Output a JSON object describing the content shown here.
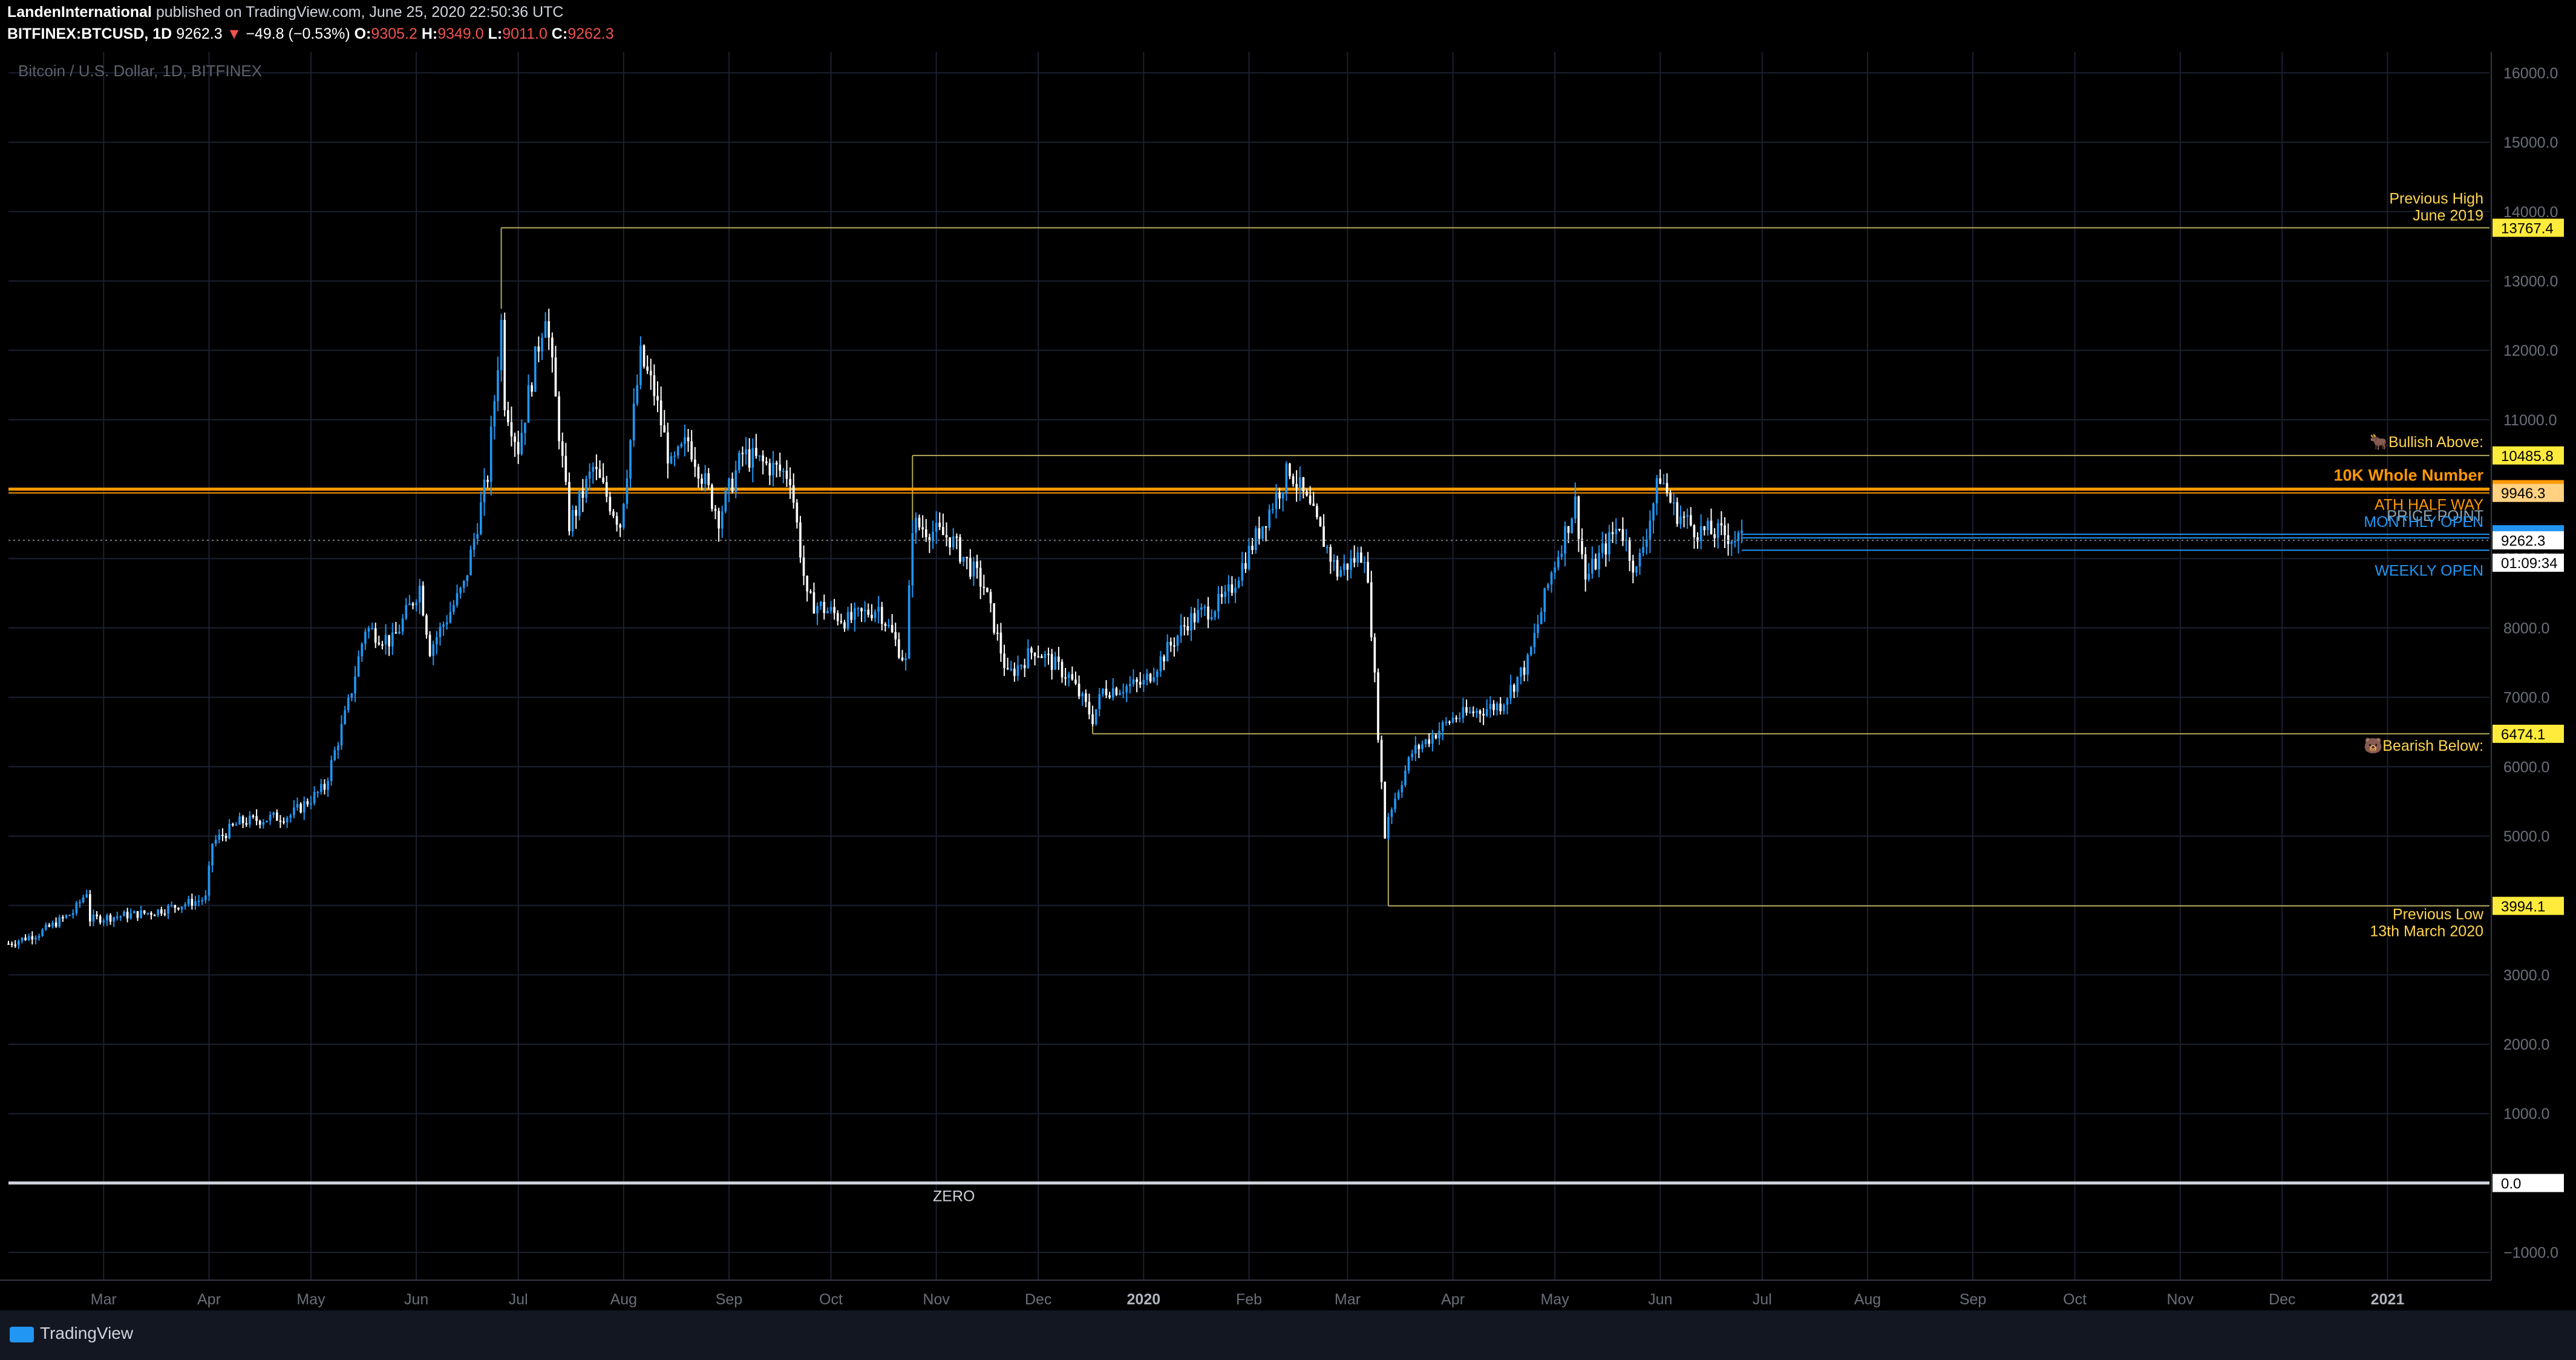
{
  "header": {
    "author": "LandenInternational",
    "published": "published on TradingView.com, June 25, 2020 22:50:36 UTC",
    "symbol": "BITFINEX:BTCUSD, 1D",
    "last": "9262.3",
    "change": "−49.8 (−0.53%)",
    "o_label": "O:",
    "o_value": "9305.2",
    "h_label": "H:",
    "h_value": "9349.0",
    "l_label": "L:",
    "l_value": "9011.0",
    "c_label": "C:",
    "c_value": "9262.3"
  },
  "footer": {
    "brand": "TradingView"
  },
  "chart_data": {
    "type": "candlestick",
    "title": "Bitcoin / U.S. Dollar, 1D, BITFINEX",
    "ylim": [
      -1400,
      16300
    ],
    "y_ticks": [
      16000,
      15000,
      14000,
      13000,
      12000,
      11000,
      10000,
      9000,
      8000,
      7000,
      6000,
      5000,
      4000,
      3000,
      2000,
      1000,
      0,
      -1000
    ],
    "y_tick_labels": [
      "16000.0",
      "15000.0",
      "14000.0",
      "13000.0",
      "12000.0",
      "11000.0",
      "10000.0",
      "9000.0",
      "8000.0",
      "7000.0",
      "6000.0",
      "5000.0",
      "4000.0",
      "3000.0",
      "2000.0",
      "1000.0",
      "0.0",
      "−1000.0"
    ],
    "x_start": "2019-02-01",
    "x_end": "2021-01-31",
    "x_ticks": [
      {
        "date": "2019-03-01",
        "label": "Mar"
      },
      {
        "date": "2019-04-01",
        "label": "Apr"
      },
      {
        "date": "2019-05-01",
        "label": "May"
      },
      {
        "date": "2019-06-01",
        "label": "Jun"
      },
      {
        "date": "2019-07-01",
        "label": "Jul"
      },
      {
        "date": "2019-08-01",
        "label": "Aug"
      },
      {
        "date": "2019-09-01",
        "label": "Sep"
      },
      {
        "date": "2019-10-01",
        "label": "Oct"
      },
      {
        "date": "2019-11-01",
        "label": "Nov"
      },
      {
        "date": "2019-12-01",
        "label": "Dec"
      },
      {
        "date": "2020-01-01",
        "label": "2020"
      },
      {
        "date": "2020-02-01",
        "label": "Feb"
      },
      {
        "date": "2020-03-01",
        "label": "Mar"
      },
      {
        "date": "2020-04-01",
        "label": "Apr"
      },
      {
        "date": "2020-05-01",
        "label": "May"
      },
      {
        "date": "2020-06-01",
        "label": "Jun"
      },
      {
        "date": "2020-07-01",
        "label": "Jul"
      },
      {
        "date": "2020-08-01",
        "label": "Aug"
      },
      {
        "date": "2020-09-01",
        "label": "Sep"
      },
      {
        "date": "2020-10-01",
        "label": "Oct"
      },
      {
        "date": "2020-11-01",
        "label": "Nov"
      },
      {
        "date": "2020-12-01",
        "label": "Dec"
      },
      {
        "date": "2021-01-01",
        "label": "2021"
      }
    ],
    "price_path": [
      [
        "2019-02-01",
        3450
      ],
      [
        "2019-02-10",
        3600
      ],
      [
        "2019-02-20",
        3900
      ],
      [
        "2019-02-24",
        4200
      ],
      [
        "2019-02-25",
        3800
      ],
      [
        "2019-03-15",
        3900
      ],
      [
        "2019-03-31",
        4100
      ],
      [
        "2019-04-02",
        4900
      ],
      [
        "2019-04-10",
        5200
      ],
      [
        "2019-04-25",
        5300
      ],
      [
        "2019-05-05",
        5700
      ],
      [
        "2019-05-12",
        6900
      ],
      [
        "2019-05-17",
        8000
      ],
      [
        "2019-05-25",
        7800
      ],
      [
        "2019-06-02",
        8600
      ],
      [
        "2019-06-05",
        7700
      ],
      [
        "2019-06-15",
        8600
      ],
      [
        "2019-06-22",
        10200
      ],
      [
        "2019-06-26",
        12400
      ],
      [
        "2019-06-27",
        11300
      ],
      [
        "2019-07-01",
        10600
      ],
      [
        "2019-07-09",
        12600
      ],
      [
        "2019-07-16",
        9500
      ],
      [
        "2019-07-18",
        9700
      ],
      [
        "2019-07-23",
        10300
      ],
      [
        "2019-07-31",
        9500
      ],
      [
        "2019-08-06",
        11900
      ],
      [
        "2019-08-10",
        11400
      ],
      [
        "2019-08-15",
        10300
      ],
      [
        "2019-08-20",
        10700
      ],
      [
        "2019-08-29",
        9600
      ],
      [
        "2019-09-05",
        10500
      ],
      [
        "2019-09-19",
        10200
      ],
      [
        "2019-09-24",
        8400
      ],
      [
        "2019-10-06",
        8100
      ],
      [
        "2019-10-15",
        8300
      ],
      [
        "2019-10-23",
        7500
      ],
      [
        "2019-10-25",
        9500
      ],
      [
        "2019-11-05",
        9300
      ],
      [
        "2019-11-15",
        8600
      ],
      [
        "2019-11-22",
        7300
      ],
      [
        "2019-11-30",
        7700
      ],
      [
        "2019-12-10",
        7300
      ],
      [
        "2019-12-17",
        6700
      ],
      [
        "2019-12-20",
        7100
      ],
      [
        "2020-01-01",
        7200
      ],
      [
        "2020-01-14",
        8100
      ],
      [
        "2020-01-25",
        8400
      ],
      [
        "2020-02-05",
        9500
      ],
      [
        "2020-02-13",
        10300
      ],
      [
        "2020-02-20",
        9600
      ],
      [
        "2020-02-27",
        8800
      ],
      [
        "2020-03-06",
        9100
      ],
      [
        "2020-03-08",
        8000
      ],
      [
        "2020-03-12",
        5000
      ],
      [
        "2020-03-13",
        5300
      ],
      [
        "2020-03-20",
        6200
      ],
      [
        "2020-04-01",
        6700
      ],
      [
        "2020-04-15",
        6900
      ],
      [
        "2020-04-23",
        7500
      ],
      [
        "2020-04-30",
        8800
      ],
      [
        "2020-05-07",
        9800
      ],
      [
        "2020-05-10",
        8700
      ],
      [
        "2020-05-20",
        9500
      ],
      [
        "2020-05-25",
        8800
      ],
      [
        "2020-06-01",
        10200
      ],
      [
        "2020-06-05",
        9700
      ],
      [
        "2020-06-12",
        9400
      ],
      [
        "2020-06-20",
        9350
      ],
      [
        "2020-06-25",
        9262
      ]
    ],
    "levels": [
      {
        "label_lines": [
          "Previous High",
          "June 2019"
        ],
        "price": "13767.4",
        "value": 13767.4,
        "start": "2019-06-26",
        "color": "#b3a85a",
        "badge_bg": "#ffeb3b",
        "badge_fg": "#000000",
        "label_color": "#ffd54f"
      },
      {
        "label_lines": [
          "🐂Bullish Above:"
        ],
        "price": "10485.8",
        "value": 10485.8,
        "start": "2019-10-25",
        "color": "#b3a85a",
        "badge_bg": "#ffeb3b",
        "badge_fg": "#000000",
        "label_color": "#ffd54f"
      },
      {
        "label_lines": [
          "10K Whole Number"
        ],
        "price": "10000.0",
        "value": 10000,
        "start": "2019-02-01",
        "color": "#ff9800",
        "badge_bg": "#ff9800",
        "badge_fg": "#000000",
        "label_color": "#ff9800",
        "bold": true,
        "thick": true
      },
      {
        "label_lines": [
          "ATH HALF WAY"
        ],
        "price": "9946.3",
        "value": 9946.3,
        "start": "2019-02-01",
        "color": "#ff9800",
        "badge_bg": "#ffd180",
        "badge_fg": "#000000",
        "label_color": "#ff9800"
      },
      {
        "label_lines": [
          "PRICE POINT"
        ],
        "price": "9349.8",
        "value": 9349.8,
        "start": "2020-06-25",
        "color": "#2196f3",
        "badge_bg": "#2196f3",
        "badge_fg": "#ffffff",
        "label_color": "#90a4ae"
      },
      {
        "label_lines": [
          "MONTHLY OPEN"
        ],
        "price": "9297.8",
        "value": 9297.8,
        "start": "2020-06-25",
        "color": "#2196f3",
        "badge_bg": "#2196f3",
        "badge_fg": "#ffffff",
        "label_color": "#2196f3"
      },
      {
        "label_lines": [
          "WEEKLY OPEN"
        ],
        "price": "",
        "value": 9120,
        "start": "2020-06-25",
        "color": "#2196f3",
        "label_color": "#2196f3"
      },
      {
        "label_lines": [
          "🐻Bearish Below:"
        ],
        "price": "6474.1",
        "value": 6474.1,
        "start": "2019-12-17",
        "color": "#b3a85a",
        "badge_bg": "#ffeb3b",
        "badge_fg": "#000000",
        "label_color": "#ffd54f"
      },
      {
        "label_lines": [
          "Previous Low",
          "13th March 2020"
        ],
        "price": "3994.1",
        "value": 3994.1,
        "start": "2020-03-13",
        "color": "#b3a85a",
        "badge_bg": "#ffeb3b",
        "badge_fg": "#000000",
        "label_color": "#ffd54f"
      },
      {
        "label_lines": [],
        "price": "0.0",
        "value": 0,
        "start": "2019-02-01",
        "color": "#d1d4dc",
        "badge_bg": "#ffffff",
        "badge_fg": "#000000",
        "label_color": "#d1d4dc",
        "thick": true
      }
    ],
    "last_price": {
      "price": "9262.3",
      "value": 9262.3,
      "countdown": "01:09:34"
    },
    "zero_label": "ZERO",
    "colors": {
      "up": "#2196f3",
      "down": "#ffffff",
      "background": "#000000",
      "grid": "#1c2030"
    }
  }
}
